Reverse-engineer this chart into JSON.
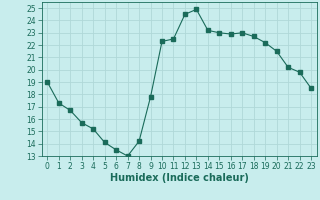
{
  "x": [
    0,
    1,
    2,
    3,
    4,
    5,
    6,
    7,
    8,
    9,
    10,
    11,
    12,
    13,
    14,
    15,
    16,
    17,
    18,
    19,
    20,
    21,
    22,
    23
  ],
  "y": [
    19,
    17.3,
    16.7,
    15.7,
    15.2,
    14.1,
    13.5,
    13.0,
    14.2,
    17.8,
    22.3,
    22.5,
    24.5,
    24.9,
    23.2,
    23.0,
    22.9,
    23.0,
    22.7,
    22.2,
    21.5,
    20.2,
    19.8,
    18.5
  ],
  "line_color": "#1a6b5a",
  "marker": "s",
  "marker_size": 2.5,
  "bg_color": "#c8eded",
  "grid_color": "#b0d8d8",
  "xlabel": "Humidex (Indice chaleur)",
  "xlim": [
    -0.5,
    23.5
  ],
  "ylim": [
    13,
    25.5
  ],
  "yticks": [
    13,
    14,
    15,
    16,
    17,
    18,
    19,
    20,
    21,
    22,
    23,
    24,
    25
  ],
  "xticks": [
    0,
    1,
    2,
    3,
    4,
    5,
    6,
    7,
    8,
    9,
    10,
    11,
    12,
    13,
    14,
    15,
    16,
    17,
    18,
    19,
    20,
    21,
    22,
    23
  ],
  "tick_color": "#1a6b5a",
  "label_fontsize": 5.5,
  "xlabel_fontsize": 7
}
